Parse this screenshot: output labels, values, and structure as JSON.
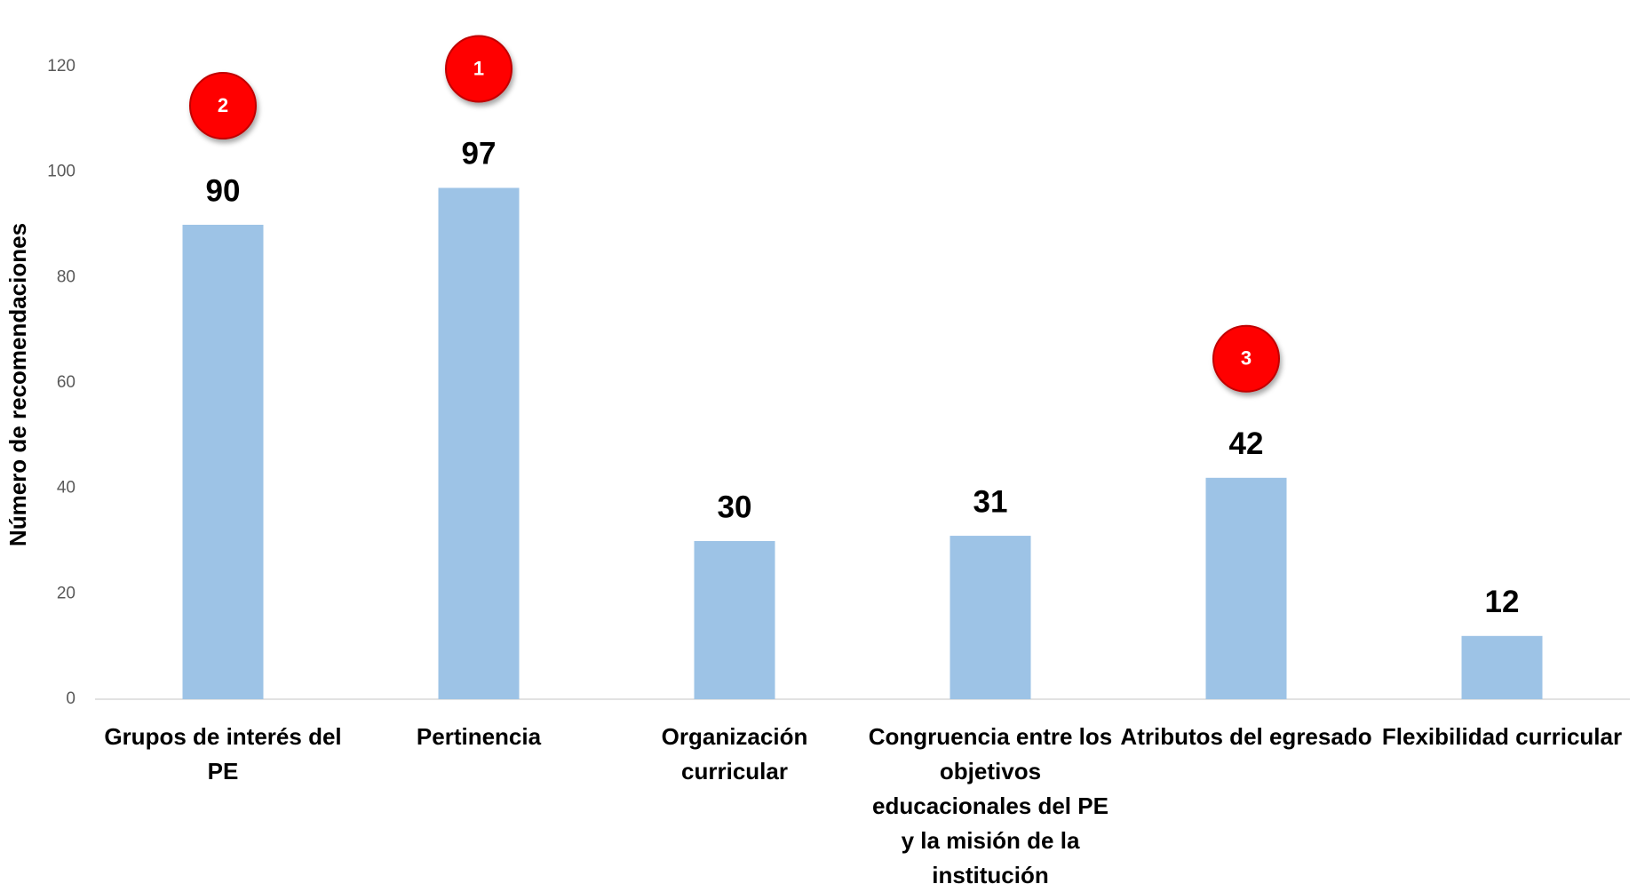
{
  "chart_data": {
    "type": "bar",
    "y_label": "Número de recomendaciones",
    "categories": [
      "Grupos de interés del PE",
      "Pertinencia",
      "Organización curricular",
      "Congruencia entre los objetivos educacionales del PE y la misión de la institución",
      "Atributos del egresado",
      "Flexibilidad curricular"
    ],
    "values": [
      90,
      97,
      30,
      31,
      42,
      12
    ],
    "ranks": [
      "2",
      "1",
      null,
      null,
      "3",
      null
    ],
    "color": "#9dc3e6",
    "ylim": [
      0,
      120
    ],
    "yticks": [
      0,
      20,
      40,
      60,
      80,
      100,
      120
    ],
    "grid": false
  }
}
